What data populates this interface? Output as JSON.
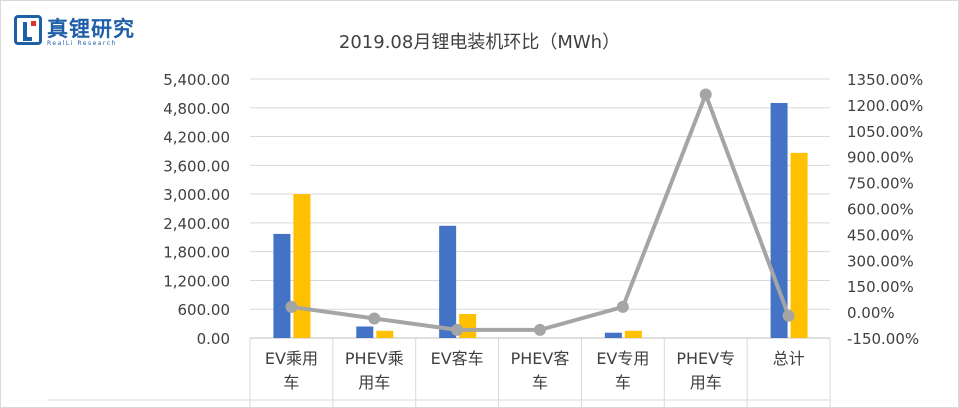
{
  "logo": {
    "name_cn": "真锂研究",
    "name_en": "RealLi Research"
  },
  "chart_data": {
    "type": "bar+line",
    "title": "2019.08月锂电装机环比（MWh）",
    "categories": [
      [
        "EV乘用",
        "车"
      ],
      [
        "PHEV乘",
        "用车"
      ],
      [
        "EV客车"
      ],
      [
        "PHEV客",
        "车"
      ],
      [
        "EV专用",
        "车"
      ],
      [
        "PHEV专",
        "用车"
      ],
      [
        "总计"
      ]
    ],
    "series": [
      {
        "kind": "bar",
        "axis": "left",
        "color": "#4472c4",
        "values": [
          2170,
          240,
          2340,
          0,
          110,
          0,
          4900
        ]
      },
      {
        "kind": "bar",
        "axis": "left",
        "color": "#ffc000",
        "values": [
          3000,
          150,
          500,
          0,
          150,
          0,
          3860
        ]
      },
      {
        "kind": "line",
        "axis": "right",
        "color": "#a5a5a5",
        "values": [
          0.3,
          -0.37,
          -1.03,
          -1.03,
          0.3,
          12.6,
          -0.21
        ]
      }
    ],
    "y_left": {
      "min": 0,
      "max": 5400,
      "ticks": [
        "0.00",
        "600.00",
        "1,200.00",
        "1,800.00",
        "2,400.00",
        "3,000.00",
        "3,600.00",
        "4,200.00",
        "4,800.00",
        "5,400.00"
      ]
    },
    "y_right": {
      "min": -1.5,
      "max": 13.5,
      "ticks": [
        "-150.00%",
        "0.00%",
        "150.00%",
        "300.00%",
        "450.00%",
        "600.00%",
        "750.00%",
        "900.00%",
        "1050.00%",
        "1200.00%",
        "1350.00%"
      ]
    },
    "gridlines": true,
    "legend": "none"
  }
}
